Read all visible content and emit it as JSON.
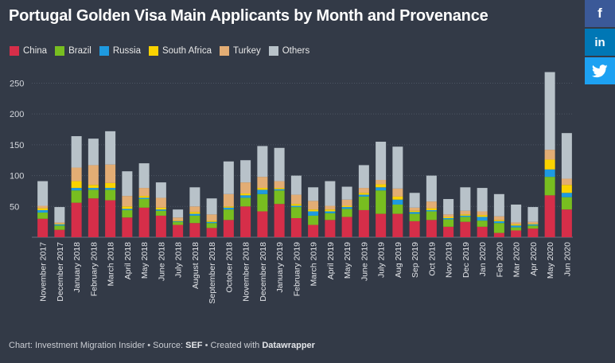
{
  "chart_data": {
    "type": "bar",
    "stacked": true,
    "title": "Portugal Golden Visa Main Applicants by Month and Provenance",
    "xlabel": "",
    "ylabel": "",
    "ylim": [
      0,
      270
    ],
    "yticks": [
      50,
      100,
      150,
      200,
      250
    ],
    "categories": [
      "November 2017",
      "December 2017",
      "January 2018",
      "February 2018",
      "March 2018",
      "April 2018",
      "May 2018",
      "June 2018",
      "July 2018",
      "August 2018",
      "September 2018",
      "October 2018",
      "November 2018",
      "December 2018",
      "January 2019",
      "February 2019",
      "March 2019",
      "April 2019",
      "May 2019",
      "June 2019",
      "July 2019",
      "Aug 2019",
      "Sep 2019",
      "Oct 2019",
      "Nov 2019",
      "Dec 2019",
      "Jan 2020",
      "Feb 2020",
      "Mar 2020",
      "Apr 2020",
      "May 2020",
      "Jun 2020"
    ],
    "series": [
      {
        "name": "China",
        "color": "#d62e49",
        "values": [
          30,
          12,
          56,
          63,
          60,
          32,
          48,
          35,
          20,
          23,
          15,
          28,
          50,
          42,
          54,
          31,
          20,
          28,
          33,
          44,
          38,
          38,
          26,
          28,
          17,
          25,
          17,
          7,
          11,
          14,
          68,
          45
        ]
      },
      {
        "name": "Brazil",
        "color": "#78be20",
        "values": [
          10,
          7,
          20,
          14,
          17,
          12,
          14,
          8,
          5,
          12,
          8,
          17,
          14,
          28,
          22,
          18,
          15,
          11,
          13,
          22,
          38,
          15,
          12,
          14,
          12,
          8,
          10,
          16,
          5,
          5,
          30,
          20
        ]
      },
      {
        "name": "Russia",
        "color": "#1e9ae0",
        "values": [
          4,
          2,
          4,
          3,
          3,
          2,
          2,
          2,
          1,
          3,
          2,
          3,
          4,
          7,
          2,
          2,
          7,
          3,
          3,
          3,
          5,
          8,
          3,
          2,
          2,
          2,
          6,
          3,
          3,
          2,
          12,
          7
        ]
      },
      {
        "name": "South Africa",
        "color": "#fad300",
        "values": [
          3,
          1,
          11,
          5,
          8,
          4,
          3,
          3,
          1,
          3,
          2,
          2,
          3,
          3,
          2,
          3,
          3,
          3,
          2,
          3,
          5,
          5,
          2,
          3,
          2,
          2,
          3,
          2,
          2,
          1,
          16,
          13
        ]
      },
      {
        "name": "Turkey",
        "color": "#e3ad74",
        "values": [
          4,
          2,
          22,
          32,
          30,
          17,
          13,
          16,
          5,
          9,
          10,
          20,
          18,
          18,
          11,
          15,
          14,
          6,
          10,
          8,
          7,
          13,
          5,
          11,
          4,
          6,
          6,
          6,
          3,
          3,
          16,
          10
        ]
      },
      {
        "name": "Others",
        "color": "#b8c2c9",
        "values": [
          40,
          25,
          51,
          43,
          54,
          40,
          40,
          25,
          13,
          31,
          26,
          53,
          36,
          50,
          54,
          31,
          22,
          40,
          21,
          37,
          62,
          68,
          24,
          42,
          25,
          38,
          38,
          36,
          29,
          24,
          126,
          74
        ]
      }
    ]
  },
  "social": {
    "facebook_glyph": "f",
    "linkedin_glyph": "in"
  },
  "footer": {
    "prefix": "Chart: Investment Migration Insider • Source: ",
    "source": "SEF",
    "middle": " • Created with ",
    "tool": "Datawrapper"
  }
}
